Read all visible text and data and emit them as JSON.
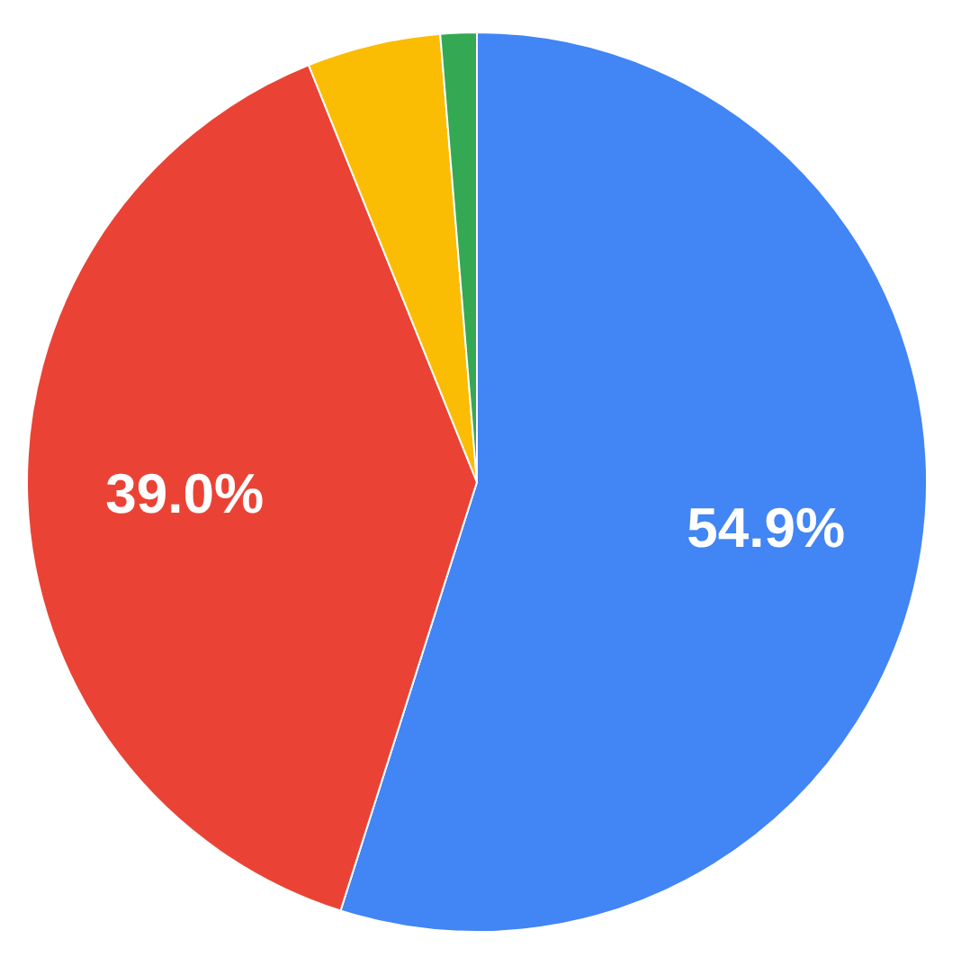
{
  "chart_data": {
    "type": "pie",
    "categories": [
      null,
      null,
      null,
      null
    ],
    "values": [
      54.9,
      39.0,
      4.8,
      1.3
    ],
    "colors": [
      "#4285f4",
      "#ea4335",
      "#fbbc04",
      "#34a853"
    ],
    "value_labels": [
      "54.9%",
      "39.0%",
      null,
      null
    ]
  }
}
